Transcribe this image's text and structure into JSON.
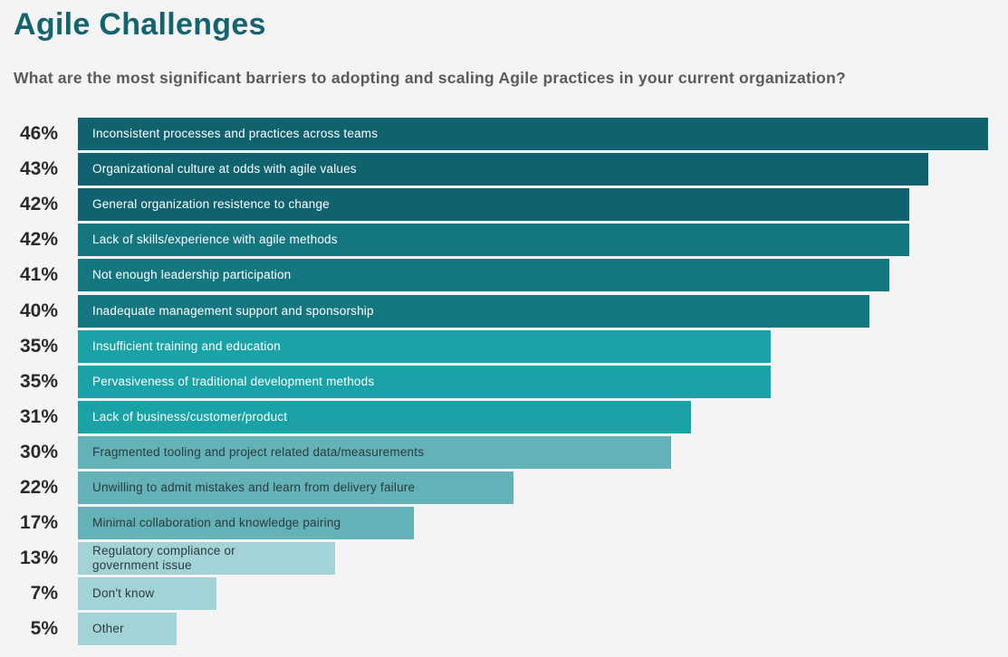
{
  "title": "Agile Challenges",
  "subtitle": "What are the most significant barriers to adopting and scaling Agile practices in your current organization?",
  "chart_data": {
    "type": "bar",
    "orientation": "horizontal",
    "title": "Agile Challenges",
    "subtitle": "What are the most significant barriers to adopting and scaling Agile practices in your current organization?",
    "xlabel": "",
    "ylabel": "",
    "xlim": [
      0,
      46
    ],
    "grid": false,
    "categories": [
      "Inconsistent processes and practices across teams",
      "Organizational culture at odds with agile values",
      "General organization resistence to change",
      "Lack of skills/experience with agile methods",
      "Not enough leadership participation",
      "Inadequate management support and sponsorship",
      "Insufficient training and education",
      "Pervasiveness of traditional development methods",
      "Lack of business/customer/product",
      "Fragmented tooling and project related data/measurements",
      "Unwilling to admit mistakes and learn from delivery failure",
      "Minimal collaboration and knowledge pairing",
      "Regulatory compliance or\ngovernment issue",
      "Don't know",
      "Other"
    ],
    "values": [
      46,
      43,
      42,
      42,
      41,
      40,
      35,
      35,
      31,
      30,
      22,
      17,
      13,
      7,
      5
    ],
    "labels": [
      "46%",
      "43%",
      "42%",
      "42%",
      "41%",
      "40%",
      "35%",
      "35%",
      "31%",
      "30%",
      "22%",
      "17%",
      "13%",
      "7%",
      "5%"
    ],
    "colors": [
      "#10636e",
      "#10636e",
      "#10636e",
      "#147780",
      "#147780",
      "#147780",
      "#19a3a6",
      "#19a3a6",
      "#19a3a6",
      "#62b2b7",
      "#62b2b7",
      "#62b2b7",
      "#a2d3d6",
      "#a2d3d6",
      "#a2d3d6"
    ],
    "text_colors": [
      "#ffffff",
      "#ffffff",
      "#ffffff",
      "#ffffff",
      "#ffffff",
      "#ffffff",
      "#ffffff",
      "#ffffff",
      "#ffffff",
      "#2d3a3c",
      "#2d3a3c",
      "#2d3a3c",
      "#2d3a3c",
      "#2d3a3c",
      "#2d3a3c"
    ]
  }
}
